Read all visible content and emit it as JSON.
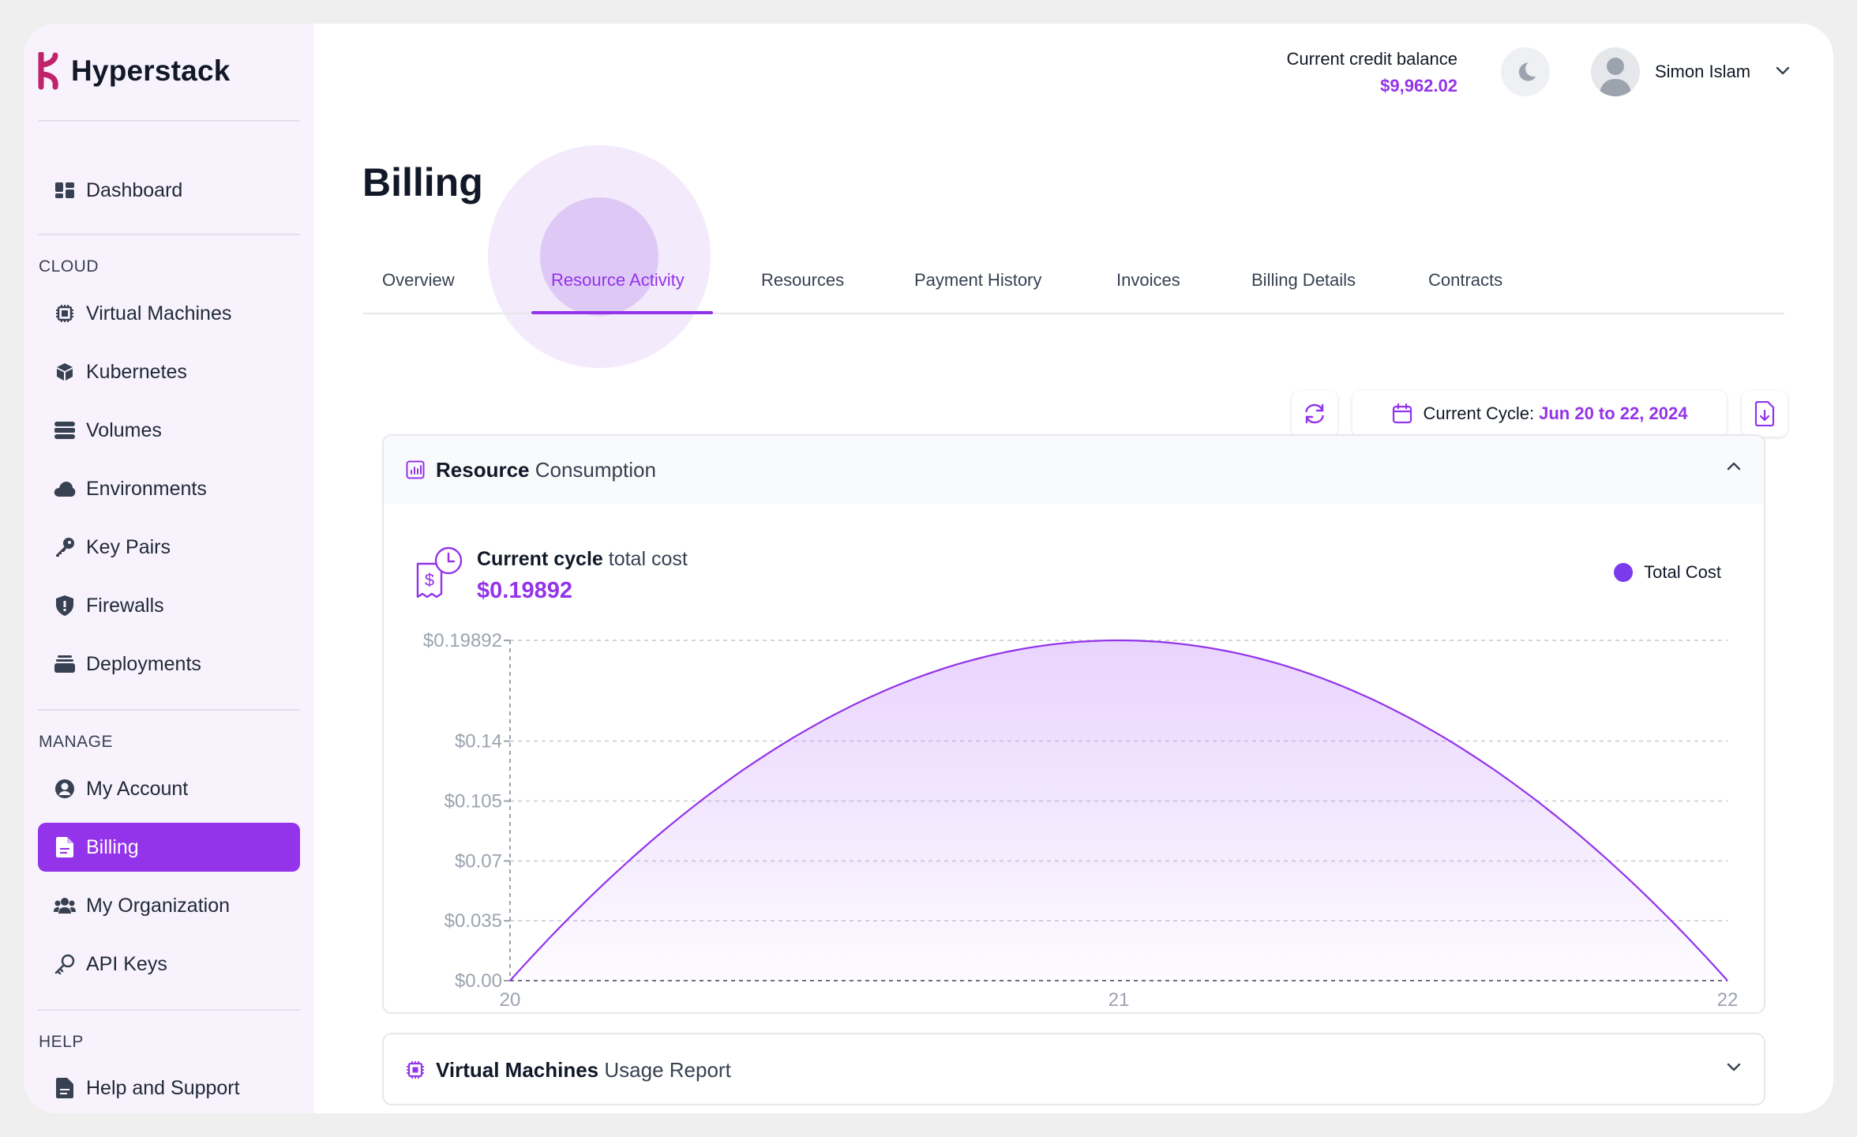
{
  "brand": {
    "name": "Hyperstack"
  },
  "sidebar": {
    "top_items": [
      {
        "label": "Dashboard",
        "icon": "dashboard-icon"
      }
    ],
    "sections": [
      {
        "label": "CLOUD",
        "items": [
          {
            "label": "Virtual Machines",
            "icon": "chip-icon"
          },
          {
            "label": "Kubernetes",
            "icon": "cube-icon"
          },
          {
            "label": "Volumes",
            "icon": "database-icon"
          },
          {
            "label": "Environments",
            "icon": "cloud-icon"
          },
          {
            "label": "Key Pairs",
            "icon": "key-icon"
          },
          {
            "label": "Firewalls",
            "icon": "shield-icon"
          },
          {
            "label": "Deployments",
            "icon": "stack-icon"
          }
        ]
      },
      {
        "label": "MANAGE",
        "items": [
          {
            "label": "My Account",
            "icon": "user-circle-icon"
          },
          {
            "label": "Billing",
            "icon": "document-icon",
            "active": true
          },
          {
            "label": "My Organization",
            "icon": "users-icon"
          },
          {
            "label": "API Keys",
            "icon": "api-key-icon"
          }
        ]
      },
      {
        "label": "HELP",
        "items": [
          {
            "label": "Help and Support",
            "icon": "help-document-icon"
          }
        ]
      }
    ]
  },
  "header": {
    "credit_label": "Current credit balance",
    "credit_value": "$9,962.02",
    "user_name": "Simon Islam"
  },
  "page": {
    "title": "Billing"
  },
  "tabs": [
    {
      "label": "Overview"
    },
    {
      "label": "Resource Activity",
      "active": true
    },
    {
      "label": "Resources"
    },
    {
      "label": "Payment History"
    },
    {
      "label": "Invoices"
    },
    {
      "label": "Billing Details"
    },
    {
      "label": "Contracts"
    }
  ],
  "toolbar": {
    "cycle_label": "Current Cycle:",
    "cycle_value": "Jun 20 to 22, 2024"
  },
  "consumption_panel": {
    "title_bold": "Resource",
    "title_rest": "Consumption",
    "cost_label_bold": "Current cycle",
    "cost_label_rest": "total cost",
    "cost_value": "$0.19892",
    "legend_label": "Total Cost"
  },
  "vm_panel": {
    "title_bold": "Virtual Machines",
    "title_rest": "Usage Report"
  },
  "chart_data": {
    "type": "area",
    "x": [
      20,
      21,
      22
    ],
    "series": [
      {
        "name": "Total Cost",
        "values": [
          0,
          0.19892,
          0
        ]
      }
    ],
    "y_ticks": [
      "$0.00",
      "$0.035",
      "$0.07",
      "$0.105",
      "$0.14",
      "$0.19892"
    ],
    "y_tick_values": [
      0,
      0.035,
      0.07,
      0.105,
      0.14,
      0.19892
    ],
    "x_ticks": [
      "20",
      "21",
      "22"
    ],
    "ylim": [
      0,
      0.19892
    ],
    "xlim": [
      20,
      22
    ],
    "grid": true,
    "legend": "top-right",
    "color": "#9333ea"
  }
}
